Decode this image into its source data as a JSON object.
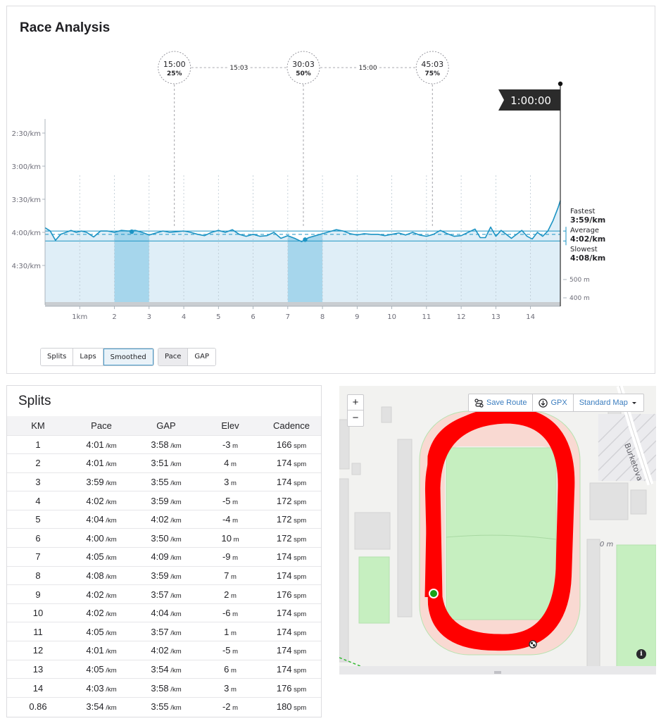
{
  "race": {
    "title": "Race Analysis",
    "buttons_group1": [
      "Splits",
      "Laps",
      "Smoothed"
    ],
    "buttons_group2": [
      "Pace",
      "GAP"
    ],
    "active_view": "Smoothed",
    "active_metric": "Pace"
  },
  "chart_data": {
    "type": "area",
    "xlabel": "",
    "ylabel": "",
    "x_unit": "km",
    "x_range": [
      0,
      14.86
    ],
    "y_unit": "min/km",
    "y_ticks": [
      "2:30/km",
      "3:00/km",
      "3:30/km",
      "4:00/km",
      "4:30/km"
    ],
    "y_tick_values": [
      2.5,
      3.0,
      3.5,
      4.0,
      4.5
    ],
    "y_range": [
      2.4,
      5.05
    ],
    "x_ticks": [
      "1km",
      "2",
      "3",
      "4",
      "5",
      "6",
      "7",
      "8",
      "9",
      "10",
      "11",
      "12",
      "13",
      "14"
    ],
    "x_tick_values": [
      1,
      2,
      3,
      4,
      5,
      6,
      7,
      8,
      9,
      10,
      11,
      12,
      13,
      14
    ],
    "series": [
      {
        "x": [
          0,
          0.15,
          0.3,
          0.45,
          0.6,
          0.75,
          0.9,
          1.05,
          1.2,
          1.4,
          1.6,
          1.8,
          2.0,
          2.2,
          2.4,
          2.6,
          2.8,
          3.0,
          3.2,
          3.4,
          3.6,
          3.8,
          4.0,
          4.2,
          4.4,
          4.6,
          4.8,
          5.0,
          5.2,
          5.4,
          5.6,
          5.8,
          6.0,
          6.2,
          6.4,
          6.6,
          6.8,
          7.0,
          7.2,
          7.4,
          7.6,
          7.8,
          8.0,
          8.2,
          8.4,
          8.6,
          8.8,
          9.0,
          9.2,
          9.4,
          9.6,
          9.8,
          10.0,
          10.2,
          10.4,
          10.6,
          10.8,
          11.0,
          11.2,
          11.4,
          11.6,
          11.8,
          12.0,
          12.2,
          12.4,
          12.55,
          12.7,
          12.85,
          13.0,
          13.15,
          13.3,
          13.45,
          13.6,
          13.75,
          13.9,
          14.05,
          14.2,
          14.35,
          14.5,
          14.65,
          14.8,
          14.86
        ],
        "values": [
          3.93,
          3.98,
          4.12,
          4.03,
          4.0,
          3.97,
          4.0,
          3.98,
          4.0,
          4.07,
          3.98,
          3.98,
          4.0,
          3.97,
          3.98,
          3.97,
          4.0,
          4.04,
          4.01,
          3.98,
          4.0,
          3.99,
          3.98,
          4.0,
          4.03,
          4.05,
          4.0,
          3.97,
          4.0,
          3.96,
          4.03,
          4.06,
          4.03,
          4.06,
          4.05,
          4.0,
          4.09,
          4.05,
          4.09,
          4.14,
          4.08,
          4.05,
          4.02,
          3.99,
          3.96,
          3.98,
          4.02,
          4.04,
          4.02,
          4.03,
          4.03,
          4.05,
          4.03,
          4.01,
          4.04,
          4.0,
          4.04,
          4.06,
          4.03,
          3.97,
          4.02,
          4.06,
          4.05,
          4.0,
          3.95,
          4.08,
          4.08,
          3.92,
          4.06,
          3.97,
          4.03,
          4.09,
          4.03,
          3.97,
          4.06,
          4.1,
          4.0,
          4.06,
          3.98,
          3.82,
          3.62,
          3.52
        ]
      }
    ],
    "elevation_ticks": [
      "500 m",
      "400 m"
    ],
    "elevation_tick_values": [
      500,
      400
    ],
    "highlighted_km_ranges": [
      [
        2,
        3
      ],
      [
        7,
        8
      ]
    ],
    "highlight_points": [
      {
        "x": 2.5,
        "y": 3.99
      },
      {
        "x": 7.5,
        "y": 4.11
      }
    ],
    "average_pace": 4.03,
    "stats": {
      "fastest_label": "Fastest",
      "fastest_value": "3:59/km",
      "average_label": "Average",
      "average_value": "4:02/km",
      "slowest_label": "Slowest",
      "slowest_value": "4:08/km"
    },
    "time_markers": [
      {
        "time": "15:00",
        "pct": "25%",
        "km": 3.73
      },
      {
        "time": "30:03",
        "pct": "50%",
        "km": 7.45
      },
      {
        "time": "45:03",
        "pct": "75%",
        "km": 11.17
      }
    ],
    "marker_gaps": [
      "15:03",
      "15:00"
    ],
    "finish_flag": "1:00:00",
    "finish_km": 14.86
  },
  "splits": {
    "title": "Splits",
    "columns": [
      "KM",
      "Pace",
      "GAP",
      "Elev",
      "Cadence"
    ],
    "pace_unit": "/km",
    "elev_unit": "m",
    "cad_unit": "spm",
    "rows": [
      {
        "km": "1",
        "pace": "4:01",
        "gap": "3:58",
        "elev": "-3",
        "cad": "166"
      },
      {
        "km": "2",
        "pace": "4:01",
        "gap": "3:51",
        "elev": "4",
        "cad": "174"
      },
      {
        "km": "3",
        "pace": "3:59",
        "gap": "3:55",
        "elev": "3",
        "cad": "174"
      },
      {
        "km": "4",
        "pace": "4:02",
        "gap": "3:59",
        "elev": "-5",
        "cad": "172"
      },
      {
        "km": "5",
        "pace": "4:04",
        "gap": "4:02",
        "elev": "-4",
        "cad": "172"
      },
      {
        "km": "6",
        "pace": "4:00",
        "gap": "3:50",
        "elev": "10",
        "cad": "172"
      },
      {
        "km": "7",
        "pace": "4:05",
        "gap": "4:09",
        "elev": "-9",
        "cad": "174"
      },
      {
        "km": "8",
        "pace": "4:08",
        "gap": "3:59",
        "elev": "7",
        "cad": "174"
      },
      {
        "km": "9",
        "pace": "4:02",
        "gap": "3:57",
        "elev": "2",
        "cad": "176"
      },
      {
        "km": "10",
        "pace": "4:02",
        "gap": "4:04",
        "elev": "-6",
        "cad": "174"
      },
      {
        "km": "11",
        "pace": "4:05",
        "gap": "3:57",
        "elev": "1",
        "cad": "174"
      },
      {
        "km": "12",
        "pace": "4:01",
        "gap": "4:02",
        "elev": "-5",
        "cad": "174"
      },
      {
        "km": "13",
        "pace": "4:05",
        "gap": "3:54",
        "elev": "6",
        "cad": "174"
      },
      {
        "km": "14",
        "pace": "4:03",
        "gap": "3:58",
        "elev": "3",
        "cad": "176"
      },
      {
        "km": "0.86",
        "pace": "3:54",
        "gap": "3:55",
        "elev": "-2",
        "cad": "180"
      }
    ]
  },
  "map": {
    "zoom_in": "+",
    "zoom_out": "−",
    "save_route": "Save Route",
    "gpx": "GPX",
    "map_type": "Standard Map",
    "street_label": "Burketova",
    "contour_label": "0 m",
    "info": "i",
    "colors": {
      "route": "#ff0000",
      "track": "#f9d9d2",
      "field": "#c6efc0",
      "background": "#f2f2f0"
    }
  },
  "colors": {
    "accent": "#1c94c4",
    "fill": "#dfeef7",
    "highlight": "#a6d6ec",
    "flag": "#2b2b2b"
  }
}
